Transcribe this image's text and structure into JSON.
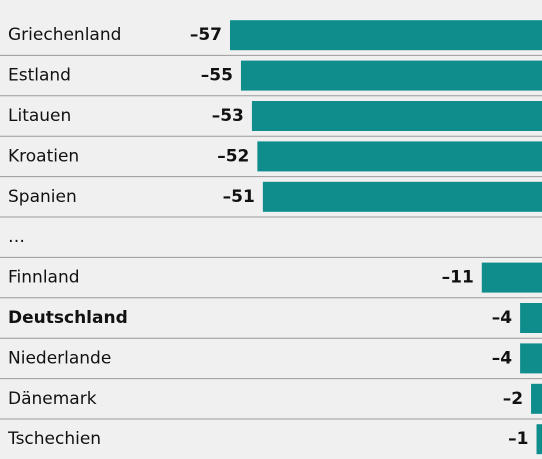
{
  "chart_data": {
    "type": "bar",
    "orientation": "horizontal",
    "categories": [
      "Griechenland",
      "Estland",
      "Litauen",
      "Kroatien",
      "Spanien",
      "…",
      "Finnland",
      "Deutschland",
      "Niederlande",
      "Dänemark",
      "Tschechien"
    ],
    "values": [
      -57,
      -55,
      -53,
      -52,
      -51,
      null,
      -11,
      -4,
      -4,
      -2,
      -1
    ],
    "value_labels": [
      "–57",
      "–55",
      "–53",
      "–52",
      "–51",
      null,
      "–11",
      "–4",
      "–4",
      "–2",
      "–1"
    ],
    "color": "#0f8c8c",
    "highlight": "Deutschland"
  }
}
